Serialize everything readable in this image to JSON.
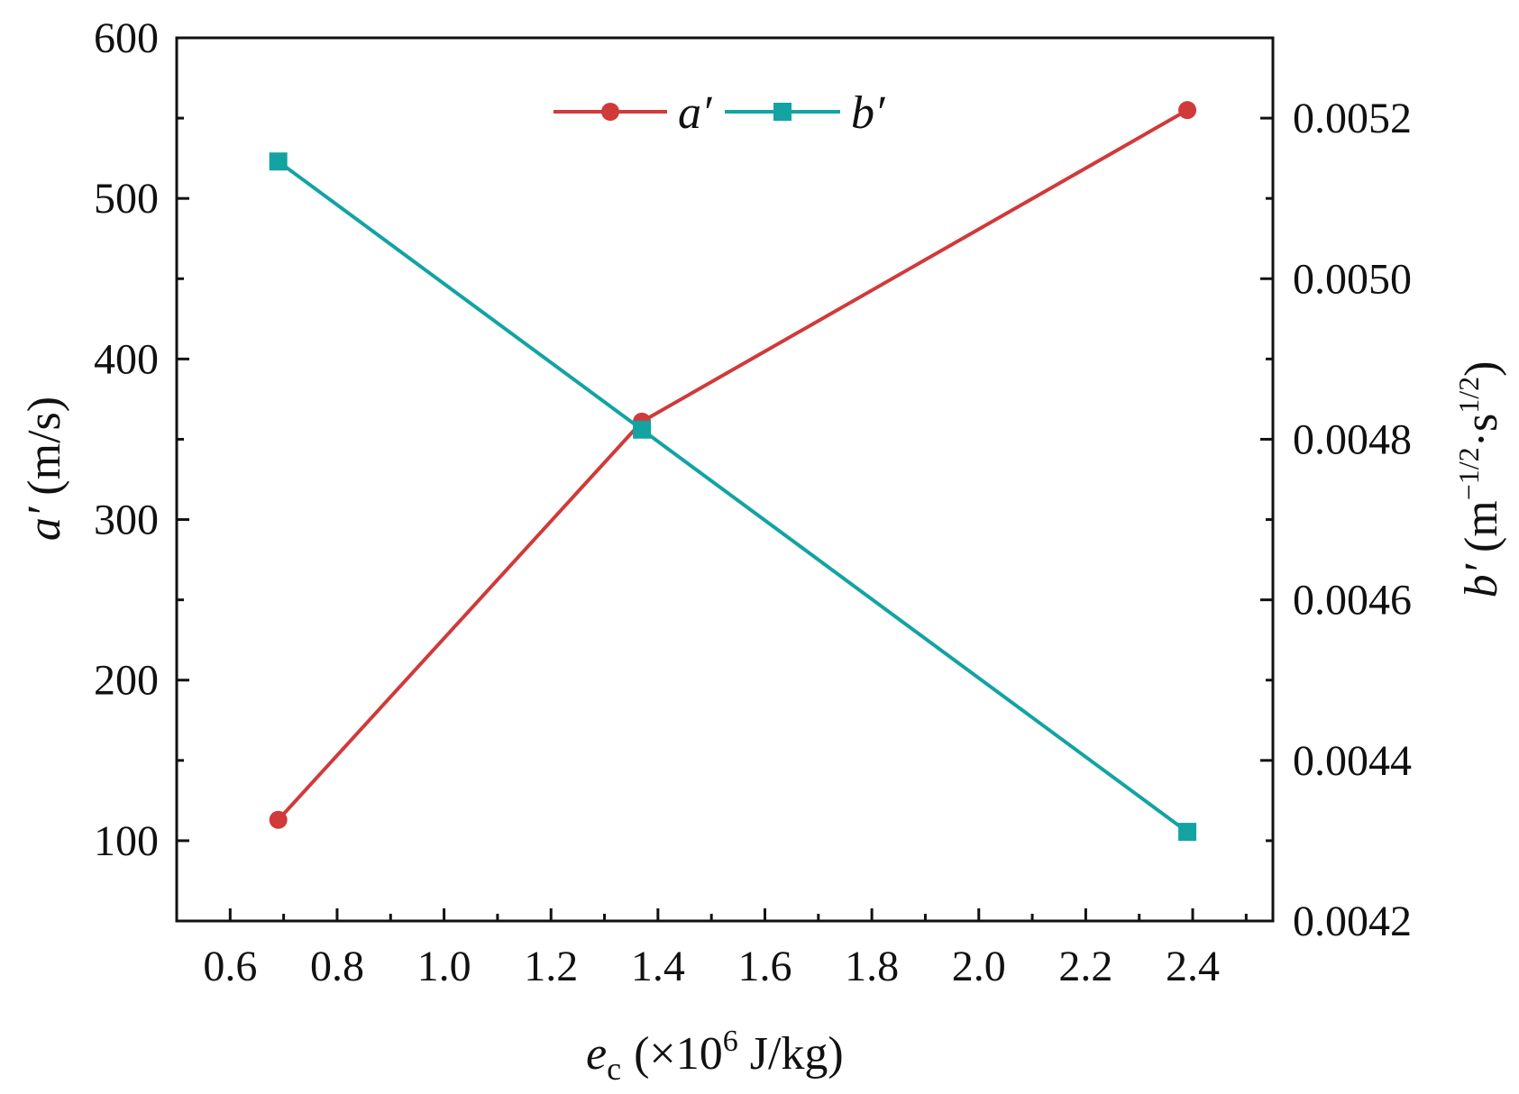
{
  "chart_data": {
    "type": "line",
    "x": [
      0.69,
      1.37,
      2.39
    ],
    "series": [
      {
        "name": "a′",
        "axis": "left",
        "marker": "circle",
        "color": "#d03a3a",
        "values": [
          113,
          361,
          555
        ]
      },
      {
        "name": "b′",
        "axis": "right",
        "marker": "square",
        "color": "#13a3a3",
        "values": [
          0.005146,
          0.004812,
          0.004311
        ]
      }
    ],
    "xlim": [
      0.5,
      2.55
    ],
    "ylim_left": [
      50,
      600
    ],
    "ylim_right": [
      0.0042,
      0.0053
    ],
    "x_ticks": [
      "0.6",
      "0.8",
      "1.0",
      "1.2",
      "1.4",
      "1.6",
      "1.8",
      "2.0",
      "2.2",
      "2.4"
    ],
    "y_left_ticks": [
      "100",
      "200",
      "300",
      "400",
      "500",
      "600"
    ],
    "y_right_ticks": [
      "0.0042",
      "0.0044",
      "0.0046",
      "0.0048",
      "0.0050",
      "0.0052"
    ],
    "xlabel": {
      "var": "e",
      "sub": "c",
      "pre": "(×10",
      "sup": "6",
      "post": " J/kg)"
    },
    "ylabel_left": {
      "var": "a′",
      "unit": " (m/s)"
    },
    "ylabel_right": {
      "var": "b′",
      "unit_open": " (m",
      "sup1": "−1/2",
      "mid": "·s",
      "sup2": "1/2",
      "unit_close": ")"
    },
    "legend_position": "top-center"
  }
}
